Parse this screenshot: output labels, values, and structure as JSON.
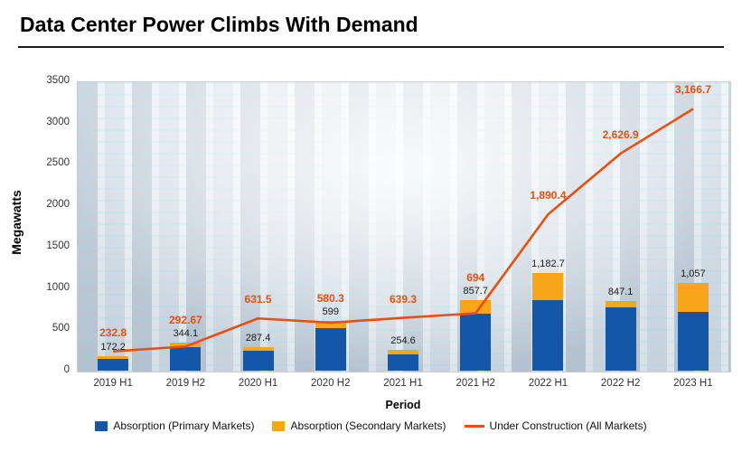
{
  "title": "Data Center Power Climbs With Demand",
  "chart_data": {
    "type": "bar",
    "subtype": "stacked-bars-with-line-overlay",
    "categories": [
      "2019 H1",
      "2019 H2",
      "2020 H1",
      "2020 H2",
      "2021 H1",
      "2021 H2",
      "2022 H1",
      "2022 H2",
      "2023 H1"
    ],
    "series": [
      {
        "name": "Absorption (Primary Markets)",
        "type": "bar",
        "stack": "absorption",
        "color": "#1456a8",
        "values": [
          137.2,
          284.1,
          237.4,
          519.0,
          199.6,
          687.7,
          852.7,
          767.1,
          707.0
        ]
      },
      {
        "name": "Absorption (Secondary Markets)",
        "type": "bar",
        "stack": "absorption",
        "color": "#f9a51a",
        "values": [
          35.0,
          60.0,
          50.0,
          80.0,
          55.0,
          170.0,
          330.0,
          80.0,
          350.0
        ]
      },
      {
        "name": "Under Construction (All Markets)",
        "type": "line",
        "color": "#e8500f",
        "values": [
          232.8,
          292.67,
          631.5,
          580.3,
          639.3,
          694,
          1890.4,
          2626.9,
          3166.7
        ],
        "point_labels": [
          "232.8",
          "292.67",
          "631.5",
          "580.3",
          "639.3",
          "694",
          "1,890.4",
          "2,626.9",
          "3,166.7"
        ]
      }
    ],
    "bar_total_labels": [
      "172.2",
      "344.1",
      "287.4",
      "599",
      "254.6",
      "857.7",
      "1,182.7",
      "847.1",
      "1,057"
    ],
    "title": "Data Center Power Climbs With Demand",
    "xlabel": "Period",
    "ylabel": "Megawatts",
    "ylim": [
      0,
      3500
    ],
    "yticks": [
      0,
      500,
      1000,
      1500,
      2000,
      2500,
      3000,
      3500
    ],
    "grid": false,
    "legend_position": "bottom"
  },
  "colors": {
    "primary_bar": "#1456a8",
    "secondary_bar": "#f9a51a",
    "line": "#e8500f",
    "bar_label": "#1a1a1a",
    "line_label": "#e8500f"
  }
}
